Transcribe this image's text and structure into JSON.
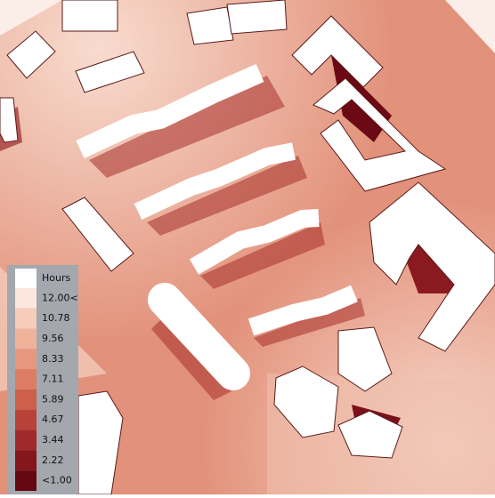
{
  "legend": {
    "title": "Hours",
    "items": [
      {
        "label": "12.00<",
        "color": "#fbe7dd"
      },
      {
        "label": "10.78",
        "color": "#f6cdbb"
      },
      {
        "label": "9.56",
        "color": "#efb39c"
      },
      {
        "label": "8.33",
        "color": "#e7987f"
      },
      {
        "label": "7.11",
        "color": "#dc7c64"
      },
      {
        "label": "5.89",
        "color": "#cd5f4b"
      },
      {
        "label": "4.67",
        "color": "#b94238"
      },
      {
        "label": "3.44",
        "color": "#a02a29"
      },
      {
        "label": "2.22",
        "color": "#84161c"
      },
      {
        "label": "<1.00",
        "color": "#650711"
      }
    ]
  }
}
